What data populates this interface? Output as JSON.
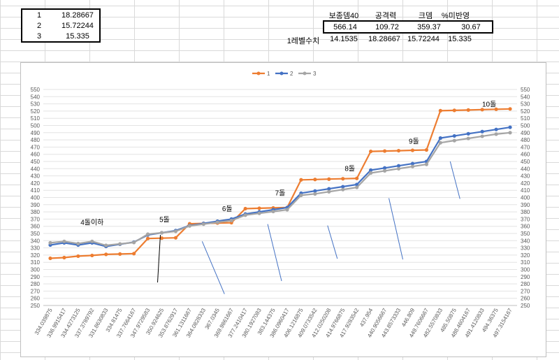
{
  "sheet": {
    "table1": [
      {
        "k": "1",
        "v": "18.28667"
      },
      {
        "k": "2",
        "v": "15.72244"
      },
      {
        "k": "3",
        "v": "15.335"
      }
    ],
    "stats_headers": [
      "보종뎀40",
      "공격력",
      "크뎀",
      "%미반영"
    ],
    "stats_values": [
      "566.14",
      "109.72",
      "359.37",
      "30.67"
    ],
    "level_row_label": "1레벨수치",
    "level_values": [
      "14.1535",
      "18.28667",
      "15.72244",
      "15.335"
    ]
  },
  "colors": {
    "s1": "#ed7d31",
    "s2": "#4472c4",
    "s3": "#a5a5a5",
    "divider": "#4472c4"
  },
  "chart_data": {
    "type": "line",
    "ylim": [
      250,
      550
    ],
    "ystep": 10,
    "grid": true,
    "legend_position": "top",
    "secondary_axis_right": true,
    "categories": [
      "334.039875",
      "336.9915417",
      "334.4273125",
      "337.3789792",
      "331.8630833",
      "334.81475",
      "337.7664167",
      "347.9729583",
      "350.924625",
      "353.8762917",
      "361.1311667",
      "364.0828333",
      "367.0345",
      "369.9861667",
      "377.2410417",
      "380.1927083",
      "383.144375",
      "386.0960417",
      "406.1216875",
      "409.0733542",
      "412.0250208",
      "414.9766875",
      "417.9283542",
      "437.954",
      "440.9056667",
      "443.8573333",
      "446.809",
      "449.7606667",
      "482.5570833",
      "485.50875",
      "488.4604167",
      "491.4120833",
      "494.36375",
      "497.3154167"
    ],
    "series": [
      {
        "name": "1",
        "color_key": "s1",
        "values": [
          315.5,
          316.5,
          318.5,
          319.5,
          321,
          321.5,
          322,
          343,
          343.5,
          344,
          363.5,
          364,
          364.5,
          365,
          384.5,
          385,
          385.5,
          386,
          424.5,
          425,
          425.5,
          426,
          426.5,
          464,
          464.5,
          465,
          465.5,
          466,
          520.5,
          521,
          521.5,
          522,
          522.5,
          523
        ]
      },
      {
        "name": "2",
        "color_key": "s2",
        "values": [
          334,
          337,
          334,
          337,
          332,
          335,
          338,
          348,
          351,
          354,
          361,
          364,
          367,
          370,
          377,
          380,
          383,
          386,
          406,
          409,
          412,
          415,
          418,
          438,
          441,
          444,
          447,
          450,
          482.5,
          485.5,
          488.5,
          491.5,
          494.5,
          497.5
        ]
      },
      {
        "name": "3",
        "color_key": "s3",
        "values": [
          337,
          339,
          336,
          339,
          333.5,
          335.5,
          337.5,
          349,
          351,
          353,
          360.5,
          363,
          365.5,
          368,
          375.5,
          378,
          380.5,
          383,
          403,
          405,
          408,
          411,
          414,
          434,
          437,
          440,
          443,
          446,
          476,
          479,
          482,
          485,
          488,
          490
        ]
      }
    ],
    "annotations": [
      {
        "text": "4돌이하",
        "x_index": 3,
        "y": 362
      },
      {
        "text": "5돌",
        "x_index": 8.2,
        "y": 366
      },
      {
        "text": "6돌",
        "x_index": 12.7,
        "y": 381
      },
      {
        "text": "7돌",
        "x_index": 16.5,
        "y": 403
      },
      {
        "text": "8돌",
        "x_index": 21.5,
        "y": 437
      },
      {
        "text": "9돌",
        "x_index": 26.1,
        "y": 475
      },
      {
        "text": "10돌",
        "x_index": 31.5,
        "y": 526
      }
    ],
    "dividers": [
      {
        "x0": 7.7,
        "y0": 282,
        "x1": 7.9,
        "y1": 348,
        "color": "#000000"
      },
      {
        "x0": 10.9,
        "y0": 339,
        "x1": 12.5,
        "y1": 266
      },
      {
        "x0": 15.6,
        "y0": 363,
        "x1": 16.6,
        "y1": 284
      },
      {
        "x0": 19.9,
        "y0": 361,
        "x1": 20.6,
        "y1": 315
      },
      {
        "x0": 24.3,
        "y0": 399,
        "x1": 25.3,
        "y1": 314
      },
      {
        "x0": 28.7,
        "y0": 450,
        "x1": 29.4,
        "y1": 398
      }
    ]
  }
}
